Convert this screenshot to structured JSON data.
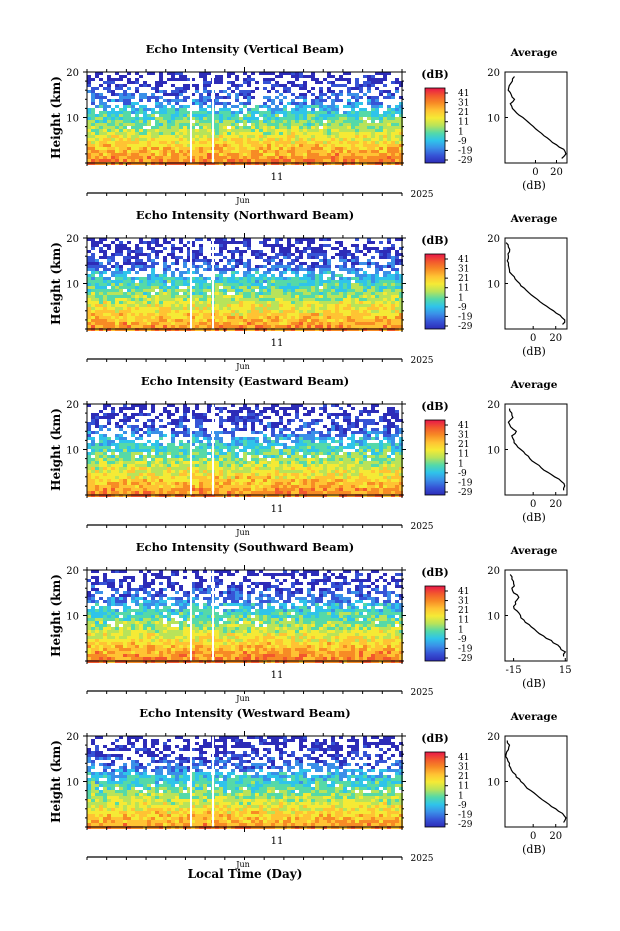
{
  "colorbar": {
    "unit": "(dB)",
    "ticks": [
      41,
      31,
      21,
      11,
      1,
      -9,
      -19,
      -29
    ],
    "stops": [
      "#e8174a",
      "#f2572d",
      "#f78b25",
      "#ffc333",
      "#f5ea35",
      "#b8e35a",
      "#55d9a8",
      "#2fc4ea",
      "#3a8fe8",
      "#3654d6",
      "#2d2cb8"
    ]
  },
  "axes": {
    "ylabel": "Height (km)",
    "xlabel": "Local Time (Day)",
    "month": "Jun",
    "day": "11",
    "year": "2025",
    "yticks": [
      20,
      10
    ],
    "avg_title": "Average",
    "avg_xlabel": "(dB)"
  },
  "chart_data": [
    {
      "type": "heatmap",
      "title": "Echo Intensity (Vertical Beam)",
      "ylabel": "Height (km)",
      "ylim": [
        0,
        20
      ],
      "avg_profile": {
        "xticks": [
          "0",
          "20"
        ],
        "xlim": [
          -29,
          30
        ],
        "heights": [
          1,
          2,
          3,
          4,
          5,
          6,
          7,
          8,
          9,
          10,
          11,
          12,
          13,
          14,
          15,
          16,
          17,
          18,
          19
        ],
        "values": [
          25,
          29,
          27,
          20,
          14,
          8,
          3,
          -2,
          -7,
          -12,
          -18,
          -22,
          -24,
          -20,
          -23,
          -26,
          -25,
          -22,
          -20
        ]
      }
    },
    {
      "type": "heatmap",
      "title": "Echo Intensity (Northward Beam)",
      "ylabel": "Height (km)",
      "ylim": [
        0,
        20
      ],
      "avg_profile": {
        "xticks": [
          "0",
          "20"
        ],
        "xlim": [
          -25,
          30
        ],
        "heights": [
          1,
          2,
          3,
          4,
          5,
          6,
          7,
          8,
          9,
          10,
          11,
          12,
          13,
          14,
          15,
          16,
          17,
          18,
          19
        ],
        "values": [
          26,
          28,
          24,
          18,
          12,
          6,
          1,
          -4,
          -8,
          -12,
          -16,
          -19,
          -21,
          -22,
          -23,
          -22,
          -21,
          -22,
          -24
        ]
      }
    },
    {
      "type": "heatmap",
      "title": "Echo Intensity (Eastward Beam)",
      "ylabel": "Height (km)",
      "ylim": [
        0,
        20
      ],
      "avg_profile": {
        "xticks": [
          "0",
          "20"
        ],
        "xlim": [
          -25,
          30
        ],
        "heights": [
          1,
          2,
          3,
          4,
          5,
          6,
          7,
          8,
          9,
          10,
          11,
          12,
          13,
          14,
          15,
          16,
          17,
          18,
          19
        ],
        "values": [
          27,
          28,
          25,
          19,
          13,
          7,
          2,
          -3,
          -7,
          -11,
          -15,
          -17,
          -19,
          -15,
          -20,
          -22,
          -18,
          -19,
          -21
        ]
      }
    },
    {
      "type": "heatmap",
      "title": "Echo Intensity (Southward Beam)",
      "ylabel": "Height (km)",
      "ylim": [
        0,
        20
      ],
      "avg_profile": {
        "xticks": [
          "-15",
          "15"
        ],
        "xlim": [
          -20,
          16
        ],
        "heights": [
          1,
          2,
          3,
          4,
          5,
          6,
          7,
          8,
          9,
          10,
          11,
          12,
          13,
          14,
          15,
          16,
          17,
          18,
          19
        ],
        "values": [
          14,
          15,
          12,
          8,
          4,
          0,
          -3,
          -6,
          -9,
          -11,
          -13,
          -15,
          -14,
          -12,
          -15,
          -16,
          -15,
          -16,
          -17
        ]
      }
    },
    {
      "type": "heatmap",
      "title": "Echo Intensity (Westward Beam)",
      "ylabel": "Height (km)",
      "ylim": [
        0,
        20
      ],
      "avg_profile": {
        "xticks": [
          "0",
          "20"
        ],
        "xlim": [
          -25,
          30
        ],
        "heights": [
          1,
          2,
          3,
          4,
          5,
          6,
          7,
          8,
          9,
          10,
          11,
          12,
          13,
          14,
          15,
          16,
          17,
          18,
          19
        ],
        "values": [
          27,
          29,
          26,
          20,
          14,
          8,
          3,
          -2,
          -7,
          -11,
          -15,
          -18,
          -20,
          -21,
          -23,
          -24,
          -22,
          -21,
          -23
        ]
      }
    }
  ]
}
